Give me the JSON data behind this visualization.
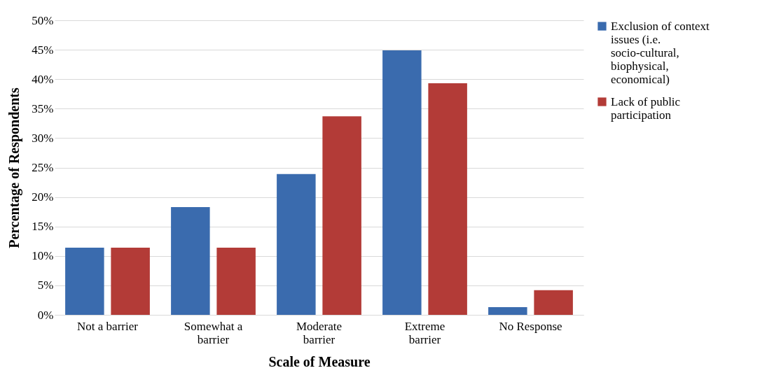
{
  "chart_data": {
    "type": "bar",
    "xlabel": "Scale of Measure",
    "ylabel": "Percentage of Respondents",
    "categories": [
      "Not a barrier",
      "Somewhat a barrier",
      "Moderate barrier",
      "Extreme barrier",
      "No Response"
    ],
    "series": [
      {
        "name": "Exclusion of context issues (i.e. socio-cultural, biophysical, economical)",
        "color": "#3a6bae",
        "values": [
          11.4,
          18.3,
          23.9,
          44.9,
          1.3
        ]
      },
      {
        "name": "Lack of public participation",
        "color": "#b33b37",
        "values": [
          11.4,
          11.4,
          33.7,
          39.3,
          4.2
        ]
      }
    ],
    "ylim": [
      0,
      50
    ],
    "yticks": [
      {
        "value": 0,
        "label": "0%"
      },
      {
        "value": 5,
        "label": "5%"
      },
      {
        "value": 10,
        "label": "10%"
      },
      {
        "value": 15,
        "label": "15%"
      },
      {
        "value": 20,
        "label": "20%"
      },
      {
        "value": 25,
        "label": "25%"
      },
      {
        "value": 30,
        "label": "30%"
      },
      {
        "value": 35,
        "label": "35%"
      },
      {
        "value": 40,
        "label": "40%"
      },
      {
        "value": 45,
        "label": "45%"
      },
      {
        "value": 50,
        "label": "50%"
      }
    ],
    "grid": "y",
    "legend": "right"
  }
}
